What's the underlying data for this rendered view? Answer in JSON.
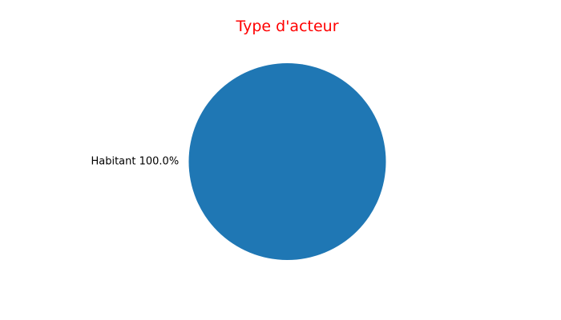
{
  "chart_data": {
    "type": "pie",
    "title": "Type d'acteur",
    "title_color": "#ff0000",
    "slices": [
      {
        "label": "Habitant",
        "value": 100.0,
        "percent_label": "100.0%",
        "display_label": "Habitant 100.0%",
        "color": "#1f77b4"
      }
    ]
  }
}
